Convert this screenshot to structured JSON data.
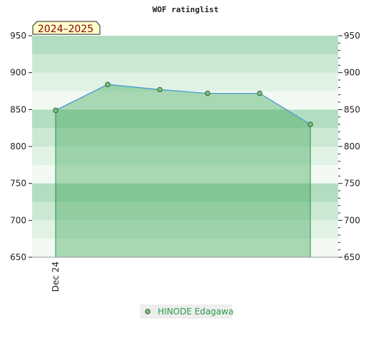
{
  "chart_data": {
    "type": "area",
    "title": "WOF ratinglist",
    "season_label": "2024–2025",
    "x_tick_labels": [
      "Dec 24"
    ],
    "ylim": [
      650,
      950
    ],
    "y_ticks": [
      650,
      700,
      750,
      800,
      850,
      900,
      950
    ],
    "grid": true,
    "legend_position": "bottom-center",
    "series": [
      {
        "name": "HINODE Edagawa",
        "values": [
          849,
          884,
          877,
          872,
          872,
          830
        ]
      }
    ],
    "colors": {
      "line": "#4a9ad0",
      "fill": "#3aa655",
      "fill_edge": "#2e8b47",
      "marker": "#7cc47c",
      "marker_edge": "#2f5f2f",
      "band_dark": "#b3ddc0",
      "band_mid": "#cbe8d3",
      "band_light": "#e0f2e4",
      "band_lightest": "#f2f9f3",
      "season_bg": "#ffffcc",
      "legend_bg": "#eeeeee",
      "legend_text": "#2a9a4a"
    }
  }
}
